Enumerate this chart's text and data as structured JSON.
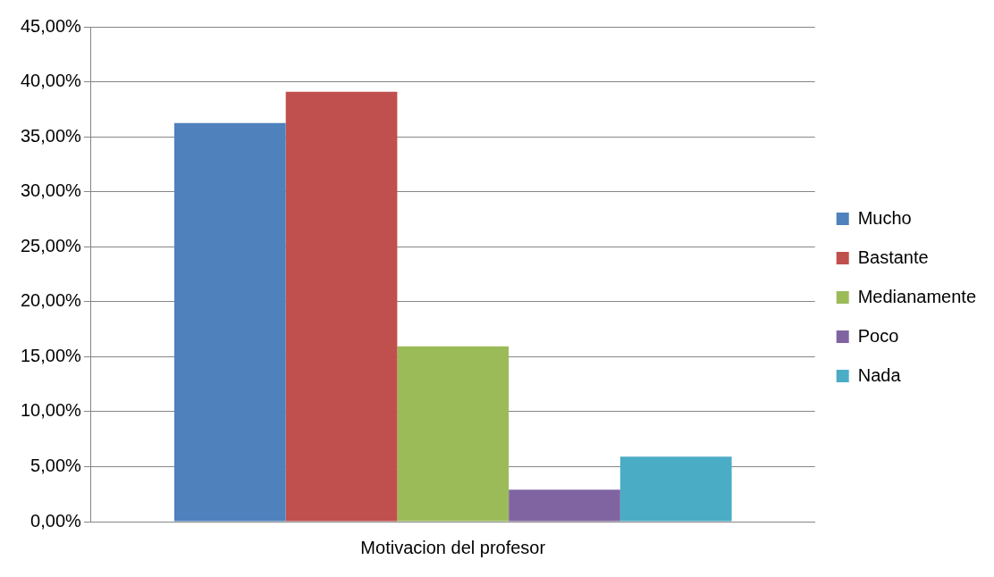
{
  "chart_data": {
    "type": "bar",
    "categories": [
      "Motivacion del profesor"
    ],
    "series": [
      {
        "name": "Mucho",
        "color": "#4f81bd",
        "values": [
          36.25
        ]
      },
      {
        "name": "Bastante",
        "color": "#c0504d",
        "values": [
          39.1
        ]
      },
      {
        "name": "Medianamente",
        "color": "#9bbb59",
        "values": [
          15.95
        ]
      },
      {
        "name": "Poco",
        "color": "#8064a2",
        "values": [
          2.9
        ]
      },
      {
        "name": "Nada",
        "color": "#4bacc6",
        "values": [
          5.9
        ]
      }
    ],
    "ylim": [
      0,
      45
    ],
    "yticks": [
      {
        "value": 0,
        "label": "0,00%"
      },
      {
        "value": 5,
        "label": "5,00%"
      },
      {
        "value": 10,
        "label": "10,00%"
      },
      {
        "value": 15,
        "label": "15,00%"
      },
      {
        "value": 20,
        "label": "20,00%"
      },
      {
        "value": 25,
        "label": "25,00%"
      },
      {
        "value": 30,
        "label": "30,00%"
      },
      {
        "value": 35,
        "label": "35,00%"
      },
      {
        "value": 40,
        "label": "40,00%"
      },
      {
        "value": 45,
        "label": "45,00%"
      }
    ],
    "grid": "y",
    "legend": "right"
  }
}
